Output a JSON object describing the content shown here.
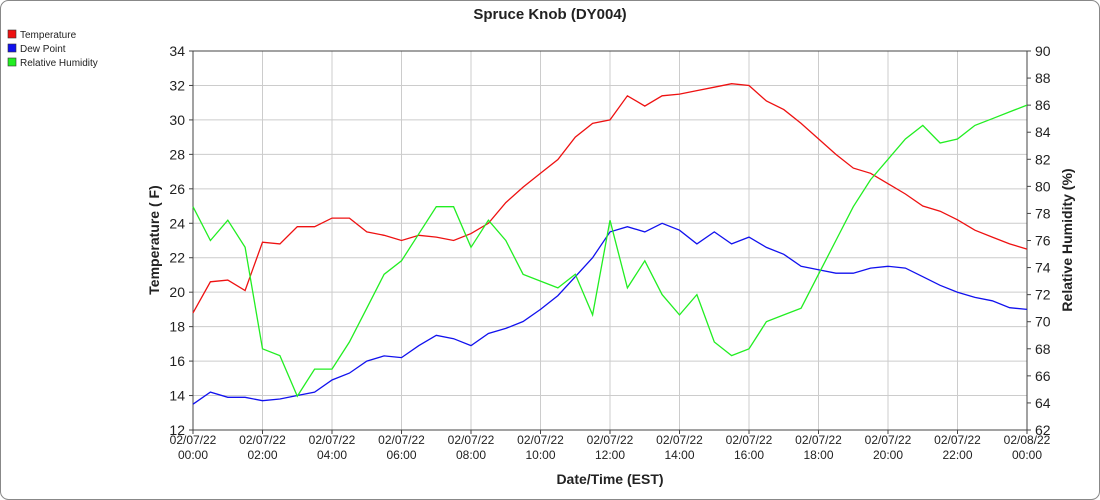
{
  "chart_data": {
    "type": "line",
    "title": "Spruce Knob (DY004)",
    "x_label": "Date/Time (EST)",
    "y_label": "Temperature ( F)",
    "y2_label": "Relative Humidity (%)",
    "legend": "left",
    "grid": true,
    "x": [
      "02/07/22 00:00",
      "02/07/22 00:30",
      "02/07/22 01:00",
      "02/07/22 01:30",
      "02/07/22 02:00",
      "02/07/22 02:30",
      "02/07/22 03:00",
      "02/07/22 03:30",
      "02/07/22 04:00",
      "02/07/22 04:30",
      "02/07/22 05:00",
      "02/07/22 05:30",
      "02/07/22 06:00",
      "02/07/22 06:30",
      "02/07/22 07:00",
      "02/07/22 07:30",
      "02/07/22 08:00",
      "02/07/22 08:30",
      "02/07/22 09:00",
      "02/07/22 09:30",
      "02/07/22 10:00",
      "02/07/22 10:30",
      "02/07/22 11:00",
      "02/07/22 11:30",
      "02/07/22 12:00",
      "02/07/22 12:30",
      "02/07/22 13:00",
      "02/07/22 13:30",
      "02/07/22 14:00",
      "02/07/22 14:30",
      "02/07/22 15:00",
      "02/07/22 15:30",
      "02/07/22 16:00",
      "02/07/22 16:30",
      "02/07/22 17:00",
      "02/07/22 17:30",
      "02/07/22 18:00",
      "02/07/22 18:30",
      "02/07/22 19:00",
      "02/07/22 19:30",
      "02/07/22 20:00",
      "02/07/22 20:30",
      "02/07/22 21:00",
      "02/07/22 21:30",
      "02/07/22 22:00",
      "02/07/22 22:30",
      "02/07/22 23:00",
      "02/07/22 23:30",
      "02/08/22 00:00"
    ],
    "series": [
      {
        "name": "Temperature",
        "color": "#ee1111",
        "values": [
          18.8,
          20.6,
          20.7,
          20.1,
          22.9,
          22.8,
          23.8,
          23.8,
          24.3,
          24.3,
          23.5,
          23.3,
          23.0,
          23.3,
          23.2,
          23.0,
          23.4,
          24.0,
          25.2,
          26.1,
          26.9,
          27.7,
          29.0,
          29.8,
          30.0,
          31.4,
          30.8,
          31.4,
          31.5,
          31.7,
          31.9,
          32.1,
          32.0,
          31.1,
          30.6,
          29.8,
          28.9,
          28.0,
          27.2,
          26.9,
          26.3,
          25.7,
          25.0,
          24.7,
          24.2,
          23.6,
          23.2,
          22.8,
          22.5
        ]
      },
      {
        "name": "Dew Point",
        "color": "#1111ee",
        "values": [
          13.5,
          14.2,
          13.9,
          13.9,
          13.7,
          13.8,
          14.0,
          14.2,
          14.9,
          15.3,
          16.0,
          16.3,
          16.2,
          16.9,
          17.5,
          17.3,
          16.9,
          17.6,
          17.9,
          18.3,
          19.0,
          19.8,
          20.9,
          22.0,
          23.5,
          23.8,
          23.5,
          24.0,
          23.6,
          22.8,
          23.5,
          22.8,
          23.2,
          22.6,
          22.2,
          21.5,
          21.3,
          21.1,
          21.1,
          21.4,
          21.5,
          21.4,
          20.9,
          20.4,
          20.0,
          19.7,
          19.5,
          19.1,
          19.0
        ]
      },
      {
        "name": "Relative Humidity",
        "color": "#22ee22",
        "axis": "y2",
        "values": [
          78.5,
          76,
          77.5,
          75.5,
          68,
          67.5,
          64.5,
          66.5,
          66.5,
          68.5,
          71,
          73.5,
          74.5,
          76.5,
          78.5,
          78.5,
          75.5,
          77.5,
          76,
          73.5,
          73,
          72.5,
          73.5,
          70.5,
          77.5,
          72.5,
          74.5,
          72,
          70.5,
          72,
          68.5,
          67.5,
          68,
          70,
          70.5,
          71,
          73.5,
          76,
          78.5,
          80.5,
          82,
          83.5,
          84.5,
          83.2,
          83.5,
          84.5,
          85,
          85.5,
          86
        ]
      }
    ],
    "xlim": [
      "02/07/22 00:00",
      "02/08/22 00:00"
    ],
    "xticks": [
      "02/07/22 00:00",
      "02/07/22 02:00",
      "02/07/22 04:00",
      "02/07/22 06:00",
      "02/07/22 08:00",
      "02/07/22 10:00",
      "02/07/22 12:00",
      "02/07/22 14:00",
      "02/07/22 16:00",
      "02/07/22 18:00",
      "02/07/22 20:00",
      "02/07/22 22:00",
      "02/08/22 00:00"
    ],
    "ylim": [
      12,
      34
    ],
    "yticks": [
      12,
      14,
      16,
      18,
      20,
      22,
      24,
      26,
      28,
      30,
      32,
      34
    ],
    "y2lim": [
      62,
      90
    ],
    "y2ticks": [
      62,
      64,
      66,
      68,
      70,
      72,
      74,
      76,
      78,
      80,
      82,
      84,
      86,
      88,
      90
    ]
  }
}
